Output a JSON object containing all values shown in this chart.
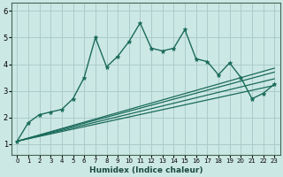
{
  "xlabel": "Humidex (Indice chaleur)",
  "background_color": "#cce8e4",
  "grid_color": "#aacccc",
  "line_color": "#1a6b5a",
  "xlim": [
    -0.5,
    23.5
  ],
  "ylim": [
    0.6,
    6.3
  ],
  "yticks": [
    1,
    2,
    3,
    4,
    5,
    6
  ],
  "xticks": [
    0,
    1,
    2,
    3,
    4,
    5,
    6,
    7,
    8,
    9,
    10,
    11,
    12,
    13,
    14,
    15,
    16,
    17,
    18,
    19,
    20,
    21,
    22,
    23
  ],
  "main_line_x": [
    0,
    1,
    2,
    3,
    4,
    5,
    6,
    7,
    8,
    9,
    10,
    11,
    12,
    13,
    14,
    15,
    16,
    17,
    18,
    19,
    20,
    21,
    22,
    23
  ],
  "main_line_y": [
    1.1,
    1.8,
    2.1,
    2.2,
    2.3,
    2.7,
    3.5,
    5.0,
    3.9,
    4.3,
    4.85,
    5.55,
    4.6,
    4.5,
    4.6,
    5.3,
    4.2,
    4.1,
    3.6,
    4.05,
    3.5,
    2.7,
    2.9,
    3.25
  ],
  "smooth_lines": [
    {
      "x": [
        0,
        23
      ],
      "y": [
        1.1,
        3.2
      ]
    },
    {
      "x": [
        0,
        23
      ],
      "y": [
        1.1,
        3.45
      ]
    },
    {
      "x": [
        0,
        23
      ],
      "y": [
        1.1,
        3.7
      ]
    },
    {
      "x": [
        0,
        23
      ],
      "y": [
        1.1,
        3.85
      ]
    }
  ]
}
